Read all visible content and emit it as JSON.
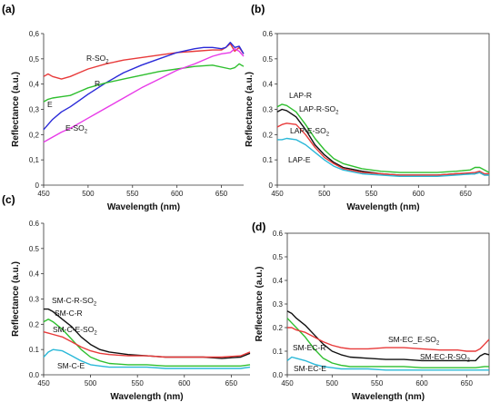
{
  "chart_data": [
    {
      "panel_label": "(a)",
      "type": "line",
      "xlabel": "Wavelength (nm)",
      "ylabel": "Reflectance (a.u.)",
      "xlim": [
        450,
        675
      ],
      "ylim": [
        0,
        0.6
      ],
      "xticks": [
        "450",
        "500",
        "550",
        "600",
        "650"
      ],
      "yticks": [
        "0",
        "0,1",
        "0,2",
        "0,3",
        "0,4",
        "0,5",
        "0,6"
      ],
      "series": [
        {
          "name": "R-SO2",
          "color": "#e83a3a",
          "x": [
            450,
            455,
            460,
            470,
            480,
            490,
            500,
            520,
            540,
            560,
            580,
            600,
            620,
            640,
            650,
            655,
            660,
            665,
            670,
            675
          ],
          "y": [
            0.43,
            0.44,
            0.43,
            0.42,
            0.43,
            0.445,
            0.46,
            0.48,
            0.495,
            0.505,
            0.515,
            0.525,
            0.53,
            0.535,
            0.535,
            0.545,
            0.56,
            0.53,
            0.545,
            0.52
          ]
        },
        {
          "name": "R",
          "color": "#2a2ad8",
          "x": [
            450,
            455,
            460,
            470,
            480,
            490,
            500,
            520,
            540,
            560,
            580,
            600,
            620,
            630,
            640,
            650,
            655,
            660,
            665,
            670,
            675
          ],
          "y": [
            0.22,
            0.24,
            0.26,
            0.29,
            0.31,
            0.335,
            0.36,
            0.405,
            0.445,
            0.475,
            0.5,
            0.525,
            0.54,
            0.545,
            0.545,
            0.54,
            0.545,
            0.565,
            0.545,
            0.55,
            0.52
          ]
        },
        {
          "name": "E",
          "color": "#2fbf2f",
          "x": [
            450,
            455,
            460,
            470,
            480,
            490,
            500,
            520,
            540,
            560,
            580,
            600,
            620,
            640,
            660,
            665,
            670,
            675
          ],
          "y": [
            0.33,
            0.34,
            0.345,
            0.35,
            0.355,
            0.37,
            0.385,
            0.405,
            0.42,
            0.435,
            0.45,
            0.46,
            0.47,
            0.475,
            0.46,
            0.465,
            0.48,
            0.47
          ]
        },
        {
          "name": "E-SO2",
          "color": "#e83ae8",
          "x": [
            450,
            455,
            460,
            470,
            480,
            490,
            500,
            520,
            540,
            560,
            580,
            600,
            620,
            640,
            650,
            660,
            665,
            670,
            675
          ],
          "y": [
            0.17,
            0.18,
            0.19,
            0.21,
            0.225,
            0.245,
            0.265,
            0.305,
            0.345,
            0.385,
            0.42,
            0.455,
            0.48,
            0.51,
            0.52,
            0.525,
            0.54,
            0.53,
            0.51
          ]
        }
      ],
      "annotations": [
        "R-SO",
        "R",
        "E",
        "E-SO"
      ]
    },
    {
      "panel_label": "(b)",
      "type": "line",
      "xlabel": "Wavelength (nm)",
      "ylabel": "Reflectance (a.u.)",
      "xlim": [
        450,
        675
      ],
      "ylim": [
        0,
        0.6
      ],
      "xticks": [
        "450",
        "500",
        "550",
        "600",
        "650"
      ],
      "yticks": [
        "0",
        "0.1",
        "0.2",
        "0.3",
        "0.4",
        "0.5",
        "0.6"
      ],
      "series": [
        {
          "name": "LAP-R",
          "color": "#2fbf2f",
          "x": [
            450,
            455,
            460,
            470,
            480,
            490,
            500,
            510,
            520,
            540,
            560,
            580,
            600,
            620,
            640,
            655,
            660,
            665,
            670,
            675
          ],
          "y": [
            0.31,
            0.32,
            0.315,
            0.29,
            0.24,
            0.185,
            0.14,
            0.105,
            0.085,
            0.065,
            0.055,
            0.05,
            0.05,
            0.05,
            0.055,
            0.06,
            0.07,
            0.07,
            0.06,
            0.05
          ]
        },
        {
          "name": "LAP-R-SO2",
          "color": "#111111",
          "x": [
            450,
            455,
            460,
            470,
            480,
            490,
            500,
            510,
            520,
            540,
            560,
            580,
            600,
            620,
            640,
            660,
            665,
            670,
            675
          ],
          "y": [
            0.29,
            0.3,
            0.295,
            0.27,
            0.22,
            0.16,
            0.12,
            0.09,
            0.07,
            0.055,
            0.045,
            0.04,
            0.04,
            0.04,
            0.045,
            0.045,
            0.05,
            0.04,
            0.04
          ]
        },
        {
          "name": "LAP-E-SO2",
          "color": "#e83a3a",
          "x": [
            450,
            455,
            460,
            470,
            480,
            490,
            500,
            510,
            520,
            540,
            560,
            580,
            600,
            620,
            640,
            660,
            665,
            670,
            675
          ],
          "y": [
            0.23,
            0.24,
            0.245,
            0.24,
            0.2,
            0.15,
            0.11,
            0.085,
            0.065,
            0.05,
            0.045,
            0.04,
            0.04,
            0.04,
            0.045,
            0.05,
            0.055,
            0.045,
            0.045
          ]
        },
        {
          "name": "LAP-E",
          "color": "#2ab8d8",
          "x": [
            450,
            455,
            460,
            470,
            480,
            490,
            500,
            510,
            520,
            540,
            560,
            580,
            600,
            620,
            640,
            660,
            665,
            670,
            675
          ],
          "y": [
            0.18,
            0.18,
            0.185,
            0.18,
            0.16,
            0.13,
            0.1,
            0.075,
            0.06,
            0.045,
            0.04,
            0.035,
            0.035,
            0.035,
            0.04,
            0.045,
            0.05,
            0.04,
            0.04
          ]
        }
      ],
      "annotations": [
        "LAP-R",
        "LAP-R-SO",
        "LAP-E-SO",
        "LAP-E"
      ]
    },
    {
      "panel_label": "(c)",
      "type": "line",
      "xlabel": "Wavelength (nm)",
      "ylabel": "Reflectance (a.u.)",
      "xlim": [
        450,
        670
      ],
      "ylim": [
        0,
        0.6
      ],
      "xticks": [
        "450",
        "500",
        "550",
        "600",
        "650"
      ],
      "yticks": [
        "0.0",
        "0.1",
        "0.2",
        "0.3",
        "0.4",
        "0.5",
        "0.6"
      ],
      "series": [
        {
          "name": "SM-C-R-SO2",
          "color": "#111111",
          "x": [
            450,
            455,
            460,
            470,
            480,
            490,
            500,
            510,
            520,
            540,
            560,
            580,
            600,
            620,
            640,
            660,
            670
          ],
          "y": [
            0.26,
            0.26,
            0.25,
            0.22,
            0.19,
            0.15,
            0.12,
            0.1,
            0.09,
            0.08,
            0.075,
            0.07,
            0.07,
            0.07,
            0.065,
            0.07,
            0.085
          ]
        },
        {
          "name": "SM-C-R",
          "color": "#2fbf2f",
          "x": [
            450,
            455,
            460,
            470,
            480,
            490,
            500,
            510,
            520,
            540,
            560,
            580,
            600,
            620,
            640,
            660,
            670
          ],
          "y": [
            0.21,
            0.22,
            0.21,
            0.18,
            0.14,
            0.1,
            0.07,
            0.055,
            0.045,
            0.04,
            0.04,
            0.035,
            0.035,
            0.035,
            0.035,
            0.035,
            0.04
          ]
        },
        {
          "name": "SM-C-E-SO2",
          "color": "#e83a3a",
          "x": [
            450,
            455,
            460,
            470,
            480,
            490,
            500,
            510,
            520,
            540,
            560,
            580,
            600,
            620,
            640,
            660,
            670
          ],
          "y": [
            0.17,
            0.165,
            0.16,
            0.15,
            0.13,
            0.11,
            0.095,
            0.085,
            0.08,
            0.075,
            0.075,
            0.07,
            0.07,
            0.07,
            0.07,
            0.075,
            0.09
          ]
        },
        {
          "name": "SM-C-E",
          "color": "#2ab8d8",
          "x": [
            450,
            455,
            460,
            470,
            480,
            490,
            500,
            510,
            520,
            540,
            560,
            580,
            600,
            620,
            640,
            660,
            670
          ],
          "y": [
            0.07,
            0.09,
            0.1,
            0.095,
            0.075,
            0.055,
            0.04,
            0.035,
            0.03,
            0.03,
            0.03,
            0.025,
            0.025,
            0.025,
            0.025,
            0.025,
            0.03
          ]
        }
      ],
      "annotations": [
        "SM-C-R-SO",
        "SM-C-R",
        "SM-C-E-SO",
        "SM-C-E"
      ]
    },
    {
      "panel_label": "(d)",
      "type": "line",
      "xlabel": "Wavelength (nm)",
      "ylabel": "Reflectance (a.u.)",
      "xlim": [
        450,
        675
      ],
      "ylim": [
        0,
        0.6
      ],
      "xticks": [
        "450",
        "500",
        "550",
        "600",
        "650"
      ],
      "yticks": [
        "0.0",
        "0.1",
        "0.2",
        "0.3",
        "0.4",
        "0.5",
        "0.6"
      ],
      "series": [
        {
          "name": "SM-EC-R-SO2",
          "color": "#111111",
          "x": [
            450,
            455,
            460,
            470,
            480,
            490,
            500,
            510,
            520,
            540,
            560,
            580,
            600,
            620,
            640,
            660,
            665,
            670,
            675
          ],
          "y": [
            0.27,
            0.26,
            0.24,
            0.21,
            0.17,
            0.13,
            0.1,
            0.085,
            0.075,
            0.07,
            0.065,
            0.065,
            0.06,
            0.06,
            0.06,
            0.06,
            0.08,
            0.09,
            0.085
          ]
        },
        {
          "name": "SM-EC-R",
          "color": "#2fbf2f",
          "x": [
            450,
            455,
            460,
            470,
            480,
            490,
            500,
            510,
            520,
            540,
            560,
            580,
            600,
            620,
            640,
            660,
            670,
            675
          ],
          "y": [
            0.24,
            0.22,
            0.2,
            0.16,
            0.11,
            0.07,
            0.05,
            0.04,
            0.035,
            0.035,
            0.035,
            0.035,
            0.03,
            0.03,
            0.03,
            0.03,
            0.035,
            0.035
          ]
        },
        {
          "name": "SM-EC_E-SO2",
          "color": "#e83a3a",
          "x": [
            450,
            455,
            460,
            470,
            480,
            490,
            500,
            510,
            520,
            540,
            560,
            580,
            600,
            620,
            640,
            650,
            660,
            665,
            670,
            675
          ],
          "y": [
            0.2,
            0.2,
            0.19,
            0.18,
            0.16,
            0.14,
            0.125,
            0.115,
            0.11,
            0.11,
            0.115,
            0.115,
            0.11,
            0.105,
            0.105,
            0.1,
            0.1,
            0.11,
            0.13,
            0.15
          ]
        },
        {
          "name": "SM-EC-E",
          "color": "#2ab8d8",
          "x": [
            450,
            455,
            460,
            470,
            480,
            490,
            500,
            510,
            520,
            540,
            560,
            580,
            600,
            620,
            640,
            660,
            670,
            675
          ],
          "y": [
            0.06,
            0.075,
            0.07,
            0.06,
            0.045,
            0.035,
            0.03,
            0.025,
            0.025,
            0.025,
            0.02,
            0.02,
            0.02,
            0.02,
            0.02,
            0.02,
            0.02,
            0.02
          ]
        }
      ],
      "annotations": [
        "SM-EC_E-SO",
        "SM-EC-R",
        "SM-EC-R-SO",
        "SM-EC-E"
      ]
    }
  ]
}
